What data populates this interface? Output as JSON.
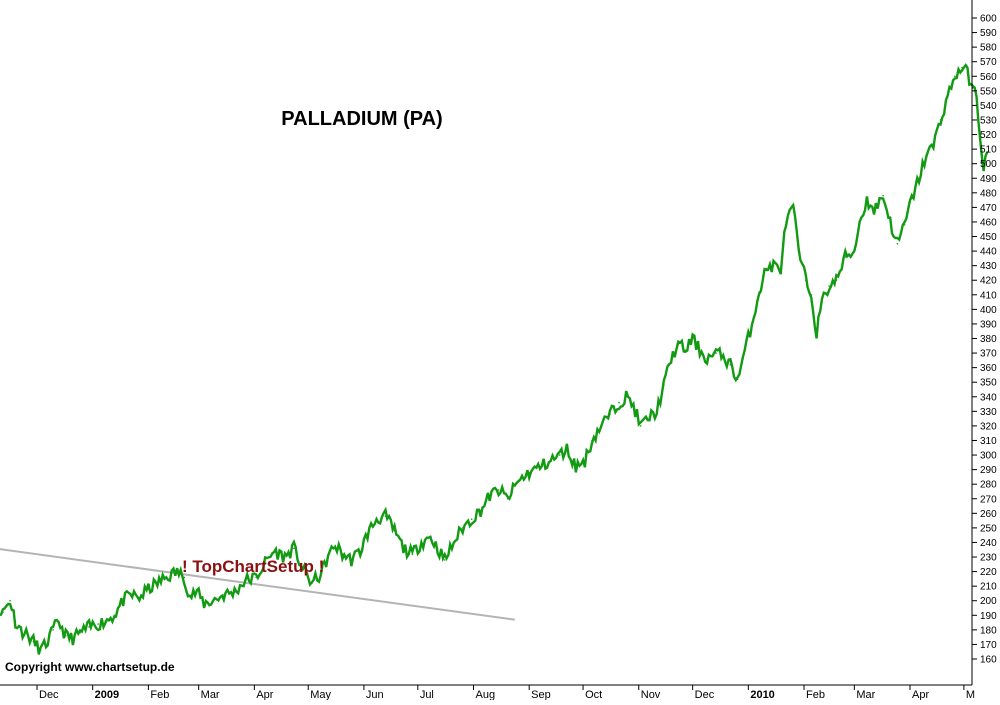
{
  "chart_data": {
    "type": "line",
    "title": "PALLADIUM (PA)",
    "annotation": "! TopChartSetup !",
    "copyright": "Copyright www.chartsetup.de",
    "y_axis_side": "right",
    "ylim": [
      150,
      605
    ],
    "y_ticks": [
      160,
      170,
      180,
      190,
      200,
      210,
      220,
      230,
      240,
      250,
      260,
      270,
      280,
      290,
      300,
      310,
      320,
      330,
      340,
      350,
      360,
      370,
      380,
      390,
      400,
      410,
      420,
      430,
      440,
      450,
      460,
      470,
      480,
      490,
      500,
      510,
      520,
      530,
      540,
      550,
      560,
      570,
      580,
      590,
      600
    ],
    "x_ticks": [
      {
        "label": "ov",
        "x": "2008-11-01"
      },
      {
        "label": "Dec",
        "x": "2008-12-01"
      },
      {
        "label": "2009",
        "x": "2009-01-01"
      },
      {
        "label": "Feb",
        "x": "2009-02-01"
      },
      {
        "label": "Mar",
        "x": "2009-03-01"
      },
      {
        "label": "Apr",
        "x": "2009-04-01"
      },
      {
        "label": "May",
        "x": "2009-05-01"
      },
      {
        "label": "Jun",
        "x": "2009-06-01"
      },
      {
        "label": "Jul",
        "x": "2009-07-01"
      },
      {
        "label": "Aug",
        "x": "2009-08-01"
      },
      {
        "label": "Sep",
        "x": "2009-09-01"
      },
      {
        "label": "Oct",
        "x": "2009-10-01"
      },
      {
        "label": "Nov",
        "x": "2009-11-01"
      },
      {
        "label": "Dec",
        "x": "2009-12-01"
      },
      {
        "label": "2010",
        "x": "2010-01-01"
      },
      {
        "label": "Feb",
        "x": "2010-02-01"
      },
      {
        "label": "Mar",
        "x": "2010-03-01"
      },
      {
        "label": "Apr",
        "x": "2010-04-01"
      },
      {
        "label": "M",
        "x": "2010-05-01"
      }
    ],
    "series": [
      {
        "color": "#129b12",
        "points": [
          [
            "2008-10-24",
            232
          ],
          [
            "2008-10-28",
            228
          ],
          [
            "2008-11-03",
            224
          ],
          [
            "2008-11-05",
            212
          ],
          [
            "2008-11-08",
            196
          ],
          [
            "2008-11-12",
            192
          ],
          [
            "2008-11-16",
            200
          ],
          [
            "2008-11-19",
            186
          ],
          [
            "2008-11-22",
            180
          ],
          [
            "2008-11-26",
            176
          ],
          [
            "2008-11-29",
            172
          ],
          [
            "2008-12-03",
            166
          ],
          [
            "2008-12-06",
            170
          ],
          [
            "2008-12-10",
            180
          ],
          [
            "2008-12-13",
            186
          ],
          [
            "2008-12-17",
            176
          ],
          [
            "2008-12-21",
            174
          ],
          [
            "2008-12-25",
            178
          ],
          [
            "2008-12-30",
            182
          ],
          [
            "2009-01-04",
            184
          ],
          [
            "2009-01-08",
            186
          ],
          [
            "2009-01-13",
            190
          ],
          [
            "2009-01-18",
            200
          ],
          [
            "2009-01-22",
            204
          ],
          [
            "2009-01-27",
            202
          ],
          [
            "2009-02-01",
            208
          ],
          [
            "2009-02-06",
            212
          ],
          [
            "2009-02-11",
            216
          ],
          [
            "2009-02-17",
            220
          ],
          [
            "2009-02-21",
            216
          ],
          [
            "2009-02-24",
            203
          ],
          [
            "2009-02-28",
            206
          ],
          [
            "2009-03-04",
            198
          ],
          [
            "2009-03-09",
            200
          ],
          [
            "2009-03-15",
            204
          ],
          [
            "2009-03-21",
            206
          ],
          [
            "2009-03-27",
            214
          ],
          [
            "2009-04-02",
            216
          ],
          [
            "2009-04-07",
            226
          ],
          [
            "2009-04-12",
            234
          ],
          [
            "2009-04-18",
            230
          ],
          [
            "2009-04-23",
            236
          ],
          [
            "2009-04-28",
            222
          ],
          [
            "2009-05-03",
            212
          ],
          [
            "2009-05-08",
            218
          ],
          [
            "2009-05-12",
            230
          ],
          [
            "2009-05-16",
            238
          ],
          [
            "2009-05-20",
            232
          ],
          [
            "2009-05-25",
            228
          ],
          [
            "2009-05-30",
            234
          ],
          [
            "2009-06-03",
            246
          ],
          [
            "2009-06-08",
            256
          ],
          [
            "2009-06-13",
            258
          ],
          [
            "2009-06-18",
            248
          ],
          [
            "2009-06-23",
            236
          ],
          [
            "2009-06-28",
            232
          ],
          [
            "2009-07-03",
            240
          ],
          [
            "2009-07-08",
            244
          ],
          [
            "2009-07-12",
            236
          ],
          [
            "2009-07-16",
            228
          ],
          [
            "2009-07-21",
            240
          ],
          [
            "2009-07-26",
            250
          ],
          [
            "2009-07-31",
            256
          ],
          [
            "2009-08-05",
            262
          ],
          [
            "2009-08-10",
            272
          ],
          [
            "2009-08-15",
            276
          ],
          [
            "2009-08-20",
            270
          ],
          [
            "2009-08-26",
            282
          ],
          [
            "2009-09-01",
            288
          ],
          [
            "2009-09-07",
            292
          ],
          [
            "2009-09-13",
            296
          ],
          [
            "2009-09-18",
            300
          ],
          [
            "2009-09-22",
            304
          ],
          [
            "2009-09-27",
            292
          ],
          [
            "2009-10-02",
            296
          ],
          [
            "2009-10-06",
            310
          ],
          [
            "2009-10-11",
            320
          ],
          [
            "2009-10-16",
            328
          ],
          [
            "2009-10-21",
            336
          ],
          [
            "2009-10-25",
            340
          ],
          [
            "2009-10-29",
            334
          ],
          [
            "2009-11-02",
            320
          ],
          [
            "2009-11-07",
            326
          ],
          [
            "2009-11-11",
            330
          ],
          [
            "2009-11-15",
            348
          ],
          [
            "2009-11-19",
            366
          ],
          [
            "2009-11-23",
            376
          ],
          [
            "2009-11-27",
            372
          ],
          [
            "2009-12-01",
            380
          ],
          [
            "2009-12-05",
            372
          ],
          [
            "2009-12-09",
            366
          ],
          [
            "2009-12-14",
            370
          ],
          [
            "2009-12-18",
            368
          ],
          [
            "2009-12-22",
            362
          ],
          [
            "2009-12-26",
            352
          ],
          [
            "2009-12-29",
            366
          ],
          [
            "2010-01-03",
            390
          ],
          [
            "2010-01-07",
            412
          ],
          [
            "2010-01-11",
            428
          ],
          [
            "2010-01-15",
            430
          ],
          [
            "2010-01-19",
            428
          ],
          [
            "2010-01-22",
            460
          ],
          [
            "2010-01-26",
            470
          ],
          [
            "2010-01-29",
            440
          ],
          [
            "2010-02-02",
            420
          ],
          [
            "2010-02-05",
            410
          ],
          [
            "2010-02-08",
            384
          ],
          [
            "2010-02-11",
            405
          ],
          [
            "2010-02-15",
            416
          ],
          [
            "2010-02-19",
            420
          ],
          [
            "2010-02-24",
            436
          ],
          [
            "2010-03-01",
            440
          ],
          [
            "2010-03-04",
            460
          ],
          [
            "2010-03-08",
            475
          ],
          [
            "2010-03-12",
            468
          ],
          [
            "2010-03-17",
            478
          ],
          [
            "2010-03-21",
            460
          ],
          [
            "2010-03-25",
            445
          ],
          [
            "2010-03-29",
            458
          ],
          [
            "2010-04-02",
            476
          ],
          [
            "2010-04-06",
            490
          ],
          [
            "2010-04-10",
            506
          ],
          [
            "2010-04-14",
            512
          ],
          [
            "2010-04-18",
            530
          ],
          [
            "2010-04-22",
            546
          ],
          [
            "2010-04-26",
            560
          ],
          [
            "2010-04-30",
            566
          ],
          [
            "2010-05-03",
            562
          ],
          [
            "2010-05-06",
            552
          ],
          [
            "2010-05-08",
            545
          ],
          [
            "2010-05-10",
            520
          ],
          [
            "2010-05-12",
            496
          ],
          [
            "2010-05-14",
            508
          ]
        ]
      }
    ],
    "trendline": {
      "color": "#b4b4b4",
      "points": [
        [
          "2008-10-20",
          239
        ],
        [
          "2009-08-24",
          187
        ]
      ]
    }
  }
}
